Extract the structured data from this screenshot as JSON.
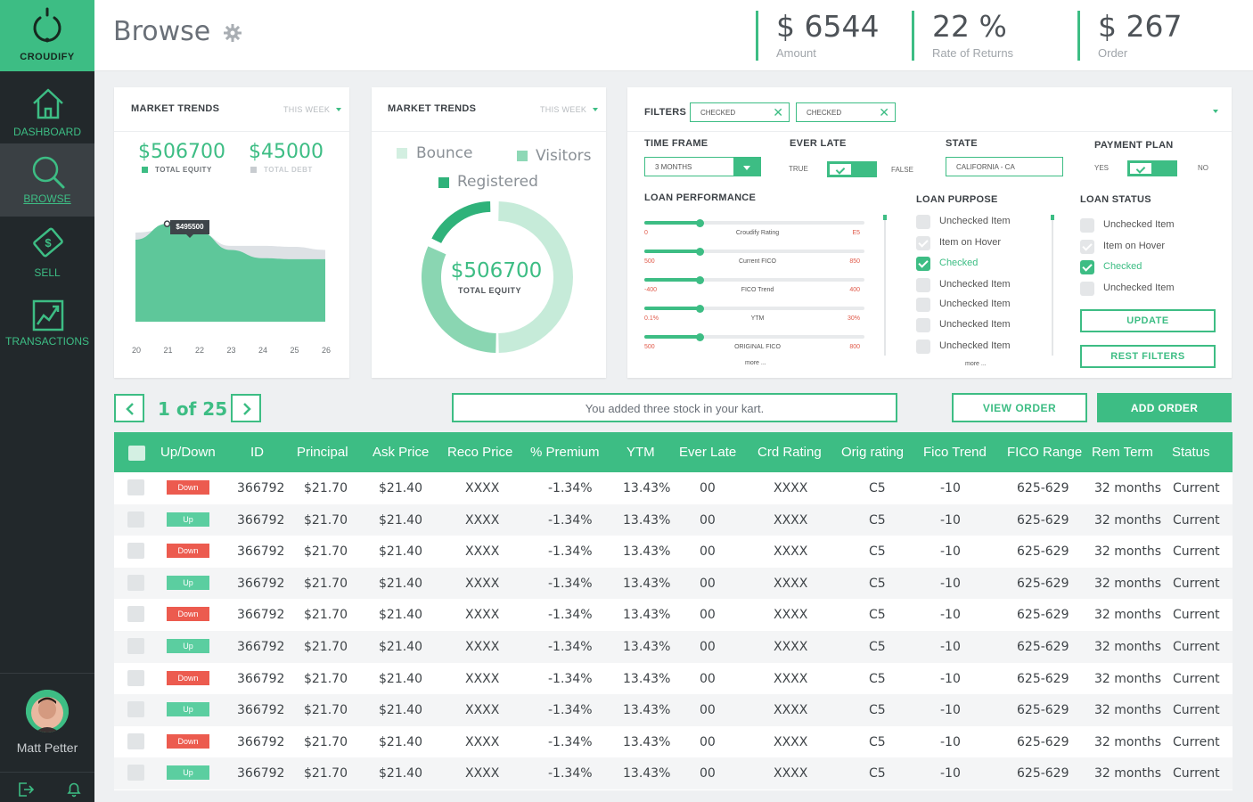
{
  "app": {
    "name": "CROUDIFY"
  },
  "nav": [
    {
      "label": "DASHBOARD",
      "icon": "home-icon"
    },
    {
      "label": "BROWSE",
      "icon": "search-icon",
      "active": true
    },
    {
      "label": "SELL",
      "icon": "money-icon"
    },
    {
      "label": "TRANSACTIONS",
      "icon": "line-chart-icon"
    }
  ],
  "user": {
    "name": "Matt Petter"
  },
  "header": {
    "title": "Browse",
    "stats": [
      {
        "value": "$ 6544",
        "label": "Amount"
      },
      {
        "value": "22 %",
        "label": "Rate of Returns"
      },
      {
        "value": "$ 267",
        "label": "Order"
      }
    ]
  },
  "market1": {
    "title": "MARKET TRENDS",
    "period": "THIS WEEK",
    "equity_value": "$506700",
    "equity_label": "TOTAL EQUITY",
    "debt_value": "$45000",
    "debt_label": "TOTAL DEBT",
    "tooltip": "$495500",
    "x_labels": [
      "20",
      "21",
      "22",
      "23",
      "24",
      "25",
      "26"
    ]
  },
  "chart_data": {
    "type": "area",
    "x": [
      "20",
      "21",
      "22",
      "23",
      "24",
      "25",
      "26"
    ],
    "series": [
      {
        "name": "TOTAL EQUITY",
        "values": [
          480000,
          495500,
          488000,
          470000,
          462000,
          461000,
          461000
        ],
        "color": "#5ec79a"
      },
      {
        "name": "TOTAL DEBT",
        "values": [
          487000,
          490000,
          487000,
          474000,
          474000,
          473000,
          470000
        ],
        "color": "#dde1e5"
      }
    ]
  },
  "market2": {
    "title": "MARKET TRENDS",
    "period": "THIS WEEK",
    "legend": [
      {
        "label": "Bounce",
        "color": "#d3efe1"
      },
      {
        "label": "Visitors",
        "color": "#8ed8b6"
      },
      {
        "label": "Registered",
        "color": "#2fb27a"
      }
    ],
    "donut_value": "$506700",
    "donut_label": "TOTAL EQUITY",
    "donut_segments": [
      {
        "label": "Bounce",
        "value": 50,
        "color": "#c6ebd9"
      },
      {
        "label": "Visitors",
        "value": 32,
        "color": "#8ad6b2"
      },
      {
        "label": "Registered",
        "value": 18,
        "color": "#2fb27a"
      }
    ]
  },
  "filters": {
    "label": "FILTERS",
    "chips": [
      "CHECKED",
      "CHECKED"
    ],
    "time_frame": {
      "label": "TIME FRAME",
      "value": "3 MONTHS"
    },
    "ever_late": {
      "label": "EVER LATE",
      "true_label": "TRUE",
      "false_label": "FALSE"
    },
    "state": {
      "label": "STATE",
      "value": "CALIFORNIA - CA"
    },
    "payment_plan": {
      "label": "PAYMENT PLAN",
      "yes_label": "YES",
      "no_label": "NO"
    },
    "loan_performance": {
      "label": "LOAN PERFORMANCE",
      "sliders": [
        {
          "name": "Croudify Rating",
          "min": "0",
          "max": "E5",
          "level": 0.25
        },
        {
          "name": "Current FICO",
          "min": "500",
          "max": "850",
          "level": 0.25
        },
        {
          "name": "FICO Trend",
          "min": "-400",
          "max": "400",
          "level": 0.25
        },
        {
          "name": "YTM",
          "min": "0.1%",
          "max": "30%",
          "level": 0.25
        },
        {
          "name": "ORIGINAL FICO",
          "min": "500",
          "max": "800",
          "level": 0.25
        }
      ],
      "more": "more ..."
    },
    "loan_purpose": {
      "label": "LOAN PURPOSE",
      "items": [
        {
          "label": "Unchecked Item",
          "state": "unchecked"
        },
        {
          "label": "Item on Hover",
          "state": "hover"
        },
        {
          "label": "Checked",
          "state": "checked"
        },
        {
          "label": "Unchecked Item",
          "state": "unchecked"
        },
        {
          "label": "Unchecked Item",
          "state": "unchecked"
        },
        {
          "label": "Unchecked Item",
          "state": "unchecked"
        },
        {
          "label": "Unchecked Item",
          "state": "unchecked"
        }
      ],
      "more": "more ..."
    },
    "loan_status": {
      "label": "LOAN STATUS",
      "items": [
        {
          "label": "Unchecked Item",
          "state": "unchecked"
        },
        {
          "label": "Item on Hover",
          "state": "hover"
        },
        {
          "label": "Checked",
          "state": "checked"
        },
        {
          "label": "Unchecked Item",
          "state": "unchecked"
        }
      ]
    },
    "update_button": "UPDATE",
    "reset_button": "REST FILTERS"
  },
  "pager": {
    "text": "1 of 25"
  },
  "notice": "You added three stock in your kart.",
  "actions": {
    "view_order": "VIEW ORDER",
    "add_order": "ADD ORDER"
  },
  "table": {
    "columns": [
      "Up/Down",
      "ID",
      "Principal",
      "Ask Price",
      "Reco Price",
      "% Premium",
      "YTM",
      "Ever Late",
      "Crd Rating",
      "Orig rating",
      "Fico Trend",
      "FICO Range",
      "Rem Term",
      "Status"
    ],
    "rows": [
      [
        "Down",
        "366792",
        "$21.70",
        "$21.40",
        "XXXX",
        "-1.34%",
        "13.43%",
        "00",
        "XXXX",
        "C5",
        "-10",
        "625-629",
        "32 months",
        "Current"
      ],
      [
        "Up",
        "366792",
        "$21.70",
        "$21.40",
        "XXXX",
        "-1.34%",
        "13.43%",
        "00",
        "XXXX",
        "C5",
        "-10",
        "625-629",
        "32 months",
        "Current"
      ],
      [
        "Down",
        "366792",
        "$21.70",
        "$21.40",
        "XXXX",
        "-1.34%",
        "13.43%",
        "00",
        "XXXX",
        "C5",
        "-10",
        "625-629",
        "32 months",
        "Current"
      ],
      [
        "Up",
        "366792",
        "$21.70",
        "$21.40",
        "XXXX",
        "-1.34%",
        "13.43%",
        "00",
        "XXXX",
        "C5",
        "-10",
        "625-629",
        "32 months",
        "Current"
      ],
      [
        "Down",
        "366792",
        "$21.70",
        "$21.40",
        "XXXX",
        "-1.34%",
        "13.43%",
        "00",
        "XXXX",
        "C5",
        "-10",
        "625-629",
        "32 months",
        "Current"
      ],
      [
        "Up",
        "366792",
        "$21.70",
        "$21.40",
        "XXXX",
        "-1.34%",
        "13.43%",
        "00",
        "XXXX",
        "C5",
        "-10",
        "625-629",
        "32 months",
        "Current"
      ],
      [
        "Down",
        "366792",
        "$21.70",
        "$21.40",
        "XXXX",
        "-1.34%",
        "13.43%",
        "00",
        "XXXX",
        "C5",
        "-10",
        "625-629",
        "32 months",
        "Current"
      ],
      [
        "Up",
        "366792",
        "$21.70",
        "$21.40",
        "XXXX",
        "-1.34%",
        "13.43%",
        "00",
        "XXXX",
        "C5",
        "-10",
        "625-629",
        "32 months",
        "Current"
      ],
      [
        "Down",
        "366792",
        "$21.70",
        "$21.40",
        "XXXX",
        "-1.34%",
        "13.43%",
        "00",
        "XXXX",
        "C5",
        "-10",
        "625-629",
        "32 months",
        "Current"
      ],
      [
        "Up",
        "366792",
        "$21.70",
        "$21.40",
        "XXXX",
        "-1.34%",
        "13.43%",
        "00",
        "XXXX",
        "C5",
        "-10",
        "625-629",
        "32 months",
        "Current"
      ]
    ]
  }
}
